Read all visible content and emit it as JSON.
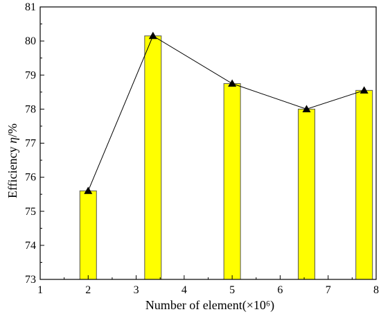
{
  "chart_data": {
    "type": "bar",
    "x": [
      2,
      3.35,
      5,
      6.55,
      7.75
    ],
    "values": [
      75.6,
      80.15,
      78.75,
      78.0,
      78.55
    ],
    "line_values": [
      75.6,
      80.15,
      78.75,
      78.0,
      78.55
    ],
    "xlabel": "Number of element(×10⁶)",
    "ylabel_main": "Efficiency ",
    "ylabel_symbol": "η",
    "ylabel_unit": "/%",
    "xlim": [
      1,
      8
    ],
    "ylim": [
      73,
      81
    ],
    "xticks": [
      "1",
      "2",
      "3",
      "4",
      "5",
      "6",
      "7",
      "8"
    ],
    "yticks": [
      "73",
      "74",
      "75",
      "76",
      "77",
      "78",
      "79",
      "80",
      "81"
    ],
    "grid": false,
    "colors": {
      "bar_fill": "#ffff00",
      "bar_stroke": "#555555",
      "line": "#000000",
      "marker": "#000000"
    },
    "marker": "triangle"
  }
}
